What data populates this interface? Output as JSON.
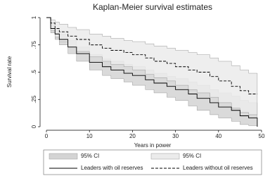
{
  "chart_data": {
    "type": "kaplan-meier",
    "title": "Kaplan-Meier survival estimates",
    "x_label": "Years in power",
    "y_label": "Survival rate",
    "xlim": [
      0,
      50
    ],
    "xticks": [
      0,
      10,
      20,
      30,
      40,
      50
    ],
    "ylim": [
      0,
      1
    ],
    "yticks": [
      0,
      {
        "value": 0.25,
        "label": ".25"
      },
      {
        "value": 0.5,
        "label": ".5"
      },
      {
        "value": 0.75,
        "label": ".75"
      },
      1
    ],
    "x": [
      0,
      1,
      2,
      3,
      5,
      7,
      10,
      13,
      15,
      18,
      20,
      23,
      25,
      28,
      30,
      33,
      35,
      38,
      40,
      43,
      45,
      47,
      49
    ],
    "series": [
      {
        "name": "95% CI",
        "kind": "band",
        "color": "#d4d4d4",
        "lower": [
          1,
          0.86,
          0.8,
          0.75,
          0.67,
          0.6,
          0.52,
          0.47,
          0.44,
          0.41,
          0.38,
          0.34,
          0.31,
          0.27,
          0.24,
          0.19,
          0.15,
          0.11,
          0.08,
          0.05,
          0.02,
          0.01,
          0
        ],
        "upper": [
          1,
          0.93,
          0.89,
          0.85,
          0.79,
          0.73,
          0.66,
          0.62,
          0.6,
          0.57,
          0.55,
          0.52,
          0.49,
          0.46,
          0.44,
          0.41,
          0.38,
          0.34,
          0.31,
          0.28,
          0.24,
          0.22,
          0.22
        ]
      },
      {
        "name": "95% CI",
        "kind": "band",
        "color": "#ebebeb",
        "lower": [
          1,
          0.88,
          0.82,
          0.78,
          0.73,
          0.69,
          0.64,
          0.6,
          0.57,
          0.55,
          0.52,
          0.48,
          0.45,
          0.42,
          0.38,
          0.34,
          0.31,
          0.27,
          0.22,
          0.17,
          0.13,
          0.11,
          0.11
        ],
        "upper": [
          1,
          0.98,
          0.96,
          0.94,
          0.91,
          0.89,
          0.85,
          0.83,
          0.81,
          0.79,
          0.78,
          0.76,
          0.74,
          0.72,
          0.7,
          0.68,
          0.66,
          0.63,
          0.6,
          0.56,
          0.52,
          0.49,
          0.49
        ]
      },
      {
        "name": "Leaders with oil reserves",
        "kind": "line",
        "color": "#000000",
        "style": "solid",
        "values": [
          1,
          0.9,
          0.85,
          0.8,
          0.73,
          0.67,
          0.59,
          0.55,
          0.52,
          0.49,
          0.47,
          0.43,
          0.4,
          0.37,
          0.34,
          0.3,
          0.26,
          0.22,
          0.18,
          0.15,
          0.1,
          0.08,
          0
        ]
      },
      {
        "name": "Leaders without oil reserves",
        "kind": "line",
        "color": "#000000",
        "style": "dashed",
        "values": [
          1,
          0.95,
          0.9,
          0.87,
          0.83,
          0.8,
          0.75,
          0.72,
          0.7,
          0.68,
          0.66,
          0.63,
          0.6,
          0.58,
          0.55,
          0.52,
          0.5,
          0.46,
          0.42,
          0.37,
          0.33,
          0.3,
          0.3
        ]
      }
    ]
  }
}
